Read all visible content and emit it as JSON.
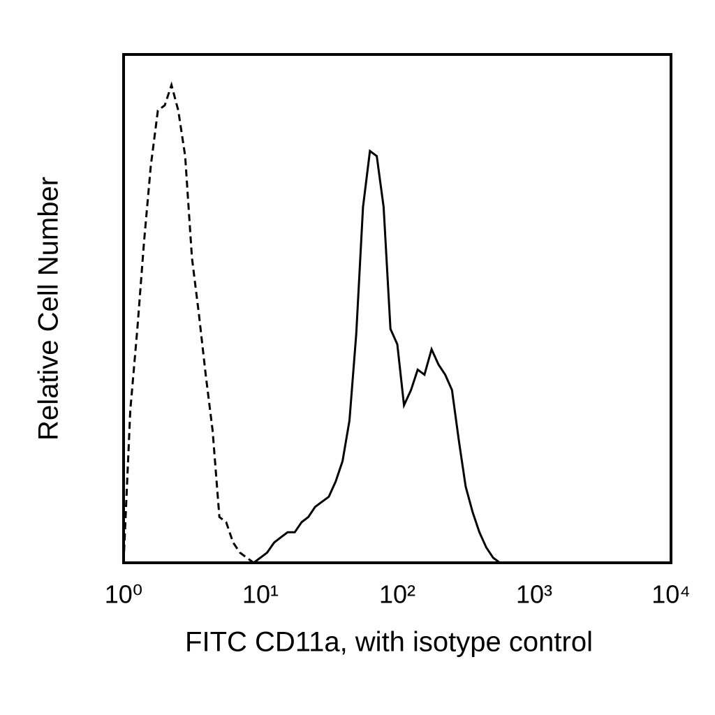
{
  "chart_data": {
    "type": "line",
    "x_label": "FITC CD11a, with isotype control",
    "y_label": "Relative Cell Number",
    "xscale": "log",
    "xlim": [
      1,
      10000
    ],
    "xticks": [
      {
        "value": 1,
        "label": "10⁰"
      },
      {
        "value": 10,
        "label": "10¹"
      },
      {
        "value": 100,
        "label": "10²"
      },
      {
        "value": 1000,
        "label": "10³"
      },
      {
        "value": 10000,
        "label": "10⁴"
      }
    ],
    "ylim": [
      0,
      100
    ],
    "x": [
      1,
      1.12,
      1.26,
      1.41,
      1.58,
      1.78,
      2,
      2.24,
      2.51,
      2.82,
      3.16,
      3.55,
      3.98,
      4.47,
      5.01,
      5.62,
      6.31,
      7.08,
      7.94,
      8.91,
      10,
      11.2,
      12.6,
      14.1,
      15.8,
      17.8,
      20,
      22.4,
      25.1,
      28.2,
      31.6,
      35.5,
      39.8,
      44.7,
      50.1,
      56.2,
      63.1,
      70.8,
      79.4,
      89.1,
      100,
      112,
      126,
      141,
      158,
      178,
      200,
      224,
      251,
      282,
      316,
      355,
      398,
      447,
      501,
      562,
      631,
      708,
      794,
      891,
      1000
    ],
    "series": [
      {
        "color": "#000000",
        "style": "dashed",
        "values": [
          0,
          30,
          46,
          63,
          78,
          89,
          90,
          94,
          89,
          80,
          60,
          49,
          37,
          26,
          9,
          8,
          4,
          2,
          1,
          0,
          0,
          0,
          0,
          0,
          0,
          0,
          0,
          0,
          0,
          0,
          0,
          0,
          0,
          0,
          0,
          0,
          0,
          0,
          0,
          0,
          0,
          0,
          0,
          0,
          0,
          0,
          0,
          0,
          0,
          0,
          0,
          0,
          0,
          0,
          0,
          0,
          0,
          0,
          null,
          null,
          null
        ]
      },
      {
        "color": "#000000",
        "style": "solid",
        "values": [
          null,
          null,
          null,
          null,
          null,
          null,
          null,
          null,
          null,
          null,
          null,
          null,
          null,
          null,
          null,
          null,
          null,
          null,
          null,
          0,
          1,
          2,
          4,
          5,
          6,
          6,
          8,
          9,
          11,
          12,
          13,
          16,
          20,
          28,
          45,
          70,
          81,
          80,
          70,
          46,
          43,
          31,
          34,
          38,
          37,
          42,
          39,
          37,
          34,
          24,
          15,
          10,
          6,
          3,
          1,
          0,
          0,
          null,
          null,
          null,
          null
        ]
      }
    ]
  }
}
